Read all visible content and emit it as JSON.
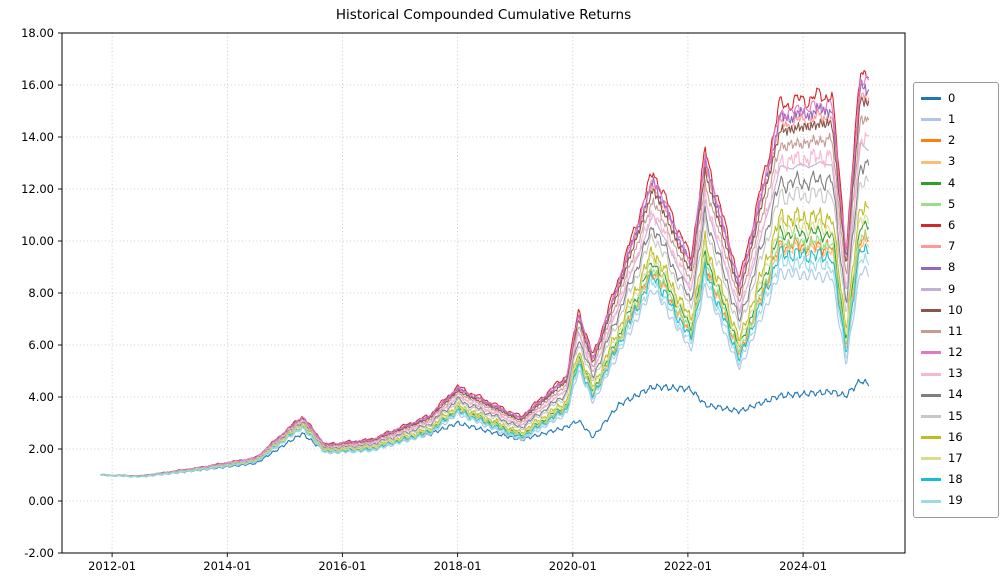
{
  "figure": {
    "background": "#ffffff"
  },
  "chart_data": {
    "type": "line",
    "title": "Historical Compounded Cumulative Returns",
    "xlabel": "",
    "ylabel": "",
    "grid": "dotted",
    "grid_color": "#b0b0b0",
    "spine_color": "#000000",
    "legend_position": "right-outside",
    "xlim": [
      2011.13,
      2025.77
    ],
    "ylim": [
      -2,
      18
    ],
    "x_tick_years": [
      2012,
      2014,
      2016,
      2018,
      2020,
      2022,
      2024
    ],
    "x_tick_labels": [
      "2012-01",
      "2014-01",
      "2016-01",
      "2018-01",
      "2020-01",
      "2022-01",
      "2024-01"
    ],
    "y_ticks": [
      -2,
      0,
      2,
      4,
      6,
      8,
      10,
      12,
      14,
      16,
      18
    ],
    "y_tick_labels": [
      "-2.00",
      "0.00",
      "2.00",
      "4.00",
      "6.00",
      "8.00",
      "10.00",
      "12.00",
      "14.00",
      "16.00",
      "18.00"
    ],
    "x_anchor_years": [
      2011.8,
      2012.5,
      2013.5,
      2014.5,
      2015.3,
      2015.7,
      2016.5,
      2017.5,
      2018.0,
      2019.1,
      2019.9,
      2020.1,
      2020.35,
      2020.8,
      2021.4,
      2022.05,
      2022.3,
      2022.9,
      2023.6,
      2024.5,
      2024.75,
      2025.0,
      2025.15
    ],
    "series": [
      {
        "name": "0",
        "color": "#1f77b4",
        "values": [
          1.0,
          0.93,
          1.18,
          1.45,
          2.6,
          1.9,
          2.05,
          2.55,
          3.0,
          2.35,
          2.85,
          3.1,
          2.45,
          3.7,
          4.4,
          4.3,
          3.7,
          3.45,
          4.05,
          4.2,
          4.05,
          4.65,
          4.45
        ]
      },
      {
        "name": "1",
        "color": "#aec7e8",
        "values": [
          1.0,
          0.93,
          1.19,
          1.49,
          2.81,
          1.84,
          1.93,
          2.55,
          3.34,
          2.34,
          3.37,
          5.06,
          3.79,
          5.71,
          8.19,
          5.82,
          8.29,
          5.08,
          8.78,
          8.61,
          5.25,
          8.96,
          8.71
        ]
      },
      {
        "name": "2",
        "color": "#ff7f0e",
        "values": [
          1.0,
          0.94,
          1.21,
          1.52,
          2.89,
          1.89,
          2.0,
          2.67,
          3.52,
          2.49,
          3.62,
          5.45,
          4.08,
          6.19,
          8.94,
          6.4,
          9.15,
          5.64,
          9.86,
          9.79,
          5.98,
          10.25,
          9.99
        ]
      },
      {
        "name": "3",
        "color": "#ffbb78",
        "values": [
          1.0,
          0.94,
          1.21,
          1.51,
          2.88,
          1.89,
          1.99,
          2.65,
          3.49,
          2.47,
          3.58,
          5.39,
          4.04,
          6.11,
          8.83,
          6.32,
          9.02,
          5.56,
          9.7,
          9.61,
          5.87,
          10.06,
          9.8
        ]
      },
      {
        "name": "4",
        "color": "#2ca02c",
        "values": [
          1.0,
          0.94,
          1.22,
          1.53,
          2.92,
          1.92,
          2.03,
          2.72,
          3.59,
          2.55,
          3.73,
          5.61,
          4.21,
          6.39,
          9.26,
          6.65,
          9.51,
          5.88,
          10.31,
          10.28,
          6.29,
          10.8,
          10.53
        ]
      },
      {
        "name": "5",
        "color": "#98df8a",
        "values": [
          1.0,
          0.94,
          1.21,
          1.52,
          2.9,
          1.9,
          2.01,
          2.68,
          3.54,
          2.5,
          3.65,
          5.49,
          4.12,
          6.24,
          9.02,
          6.46,
          9.24,
          5.7,
          9.97,
          9.91,
          6.06,
          10.39,
          10.13
        ]
      },
      {
        "name": "6",
        "color": "#d62728",
        "values": [
          1.0,
          0.96,
          1.28,
          1.67,
          3.27,
          2.18,
          2.37,
          3.28,
          4.4,
          3.24,
          4.86,
          7.37,
          5.57,
          8.59,
          12.7,
          9.32,
          13.45,
          8.49,
          15.23,
          15.66,
          9.67,
          16.73,
          16.4
        ]
      },
      {
        "name": "7",
        "color": "#ff9896",
        "values": [
          1.0,
          0.96,
          1.27,
          1.65,
          3.22,
          2.14,
          2.31,
          3.19,
          4.27,
          3.13,
          4.69,
          7.1,
          5.36,
          8.25,
          12.17,
          8.91,
          12.84,
          8.09,
          14.47,
          14.83,
          9.15,
          15.82,
          15.5
        ]
      },
      {
        "name": "8",
        "color": "#9467bd",
        "values": [
          1.0,
          0.96,
          1.28,
          1.65,
          3.24,
          2.15,
          2.33,
          3.22,
          4.32,
          3.17,
          4.74,
          7.19,
          5.43,
          8.36,
          12.34,
          9.04,
          13.04,
          8.22,
          14.72,
          15.1,
          9.32,
          16.12,
          15.8
        ]
      },
      {
        "name": "9",
        "color": "#c5b0d5",
        "values": [
          1.0,
          0.95,
          1.25,
          1.6,
          3.1,
          2.05,
          2.2,
          3.0,
          4.0,
          2.9,
          4.3,
          6.5,
          4.9,
          7.5,
          11.0,
          8.0,
          11.5,
          7.2,
          12.8,
          13.0,
          8.0,
          13.8,
          13.5
        ]
      },
      {
        "name": "10",
        "color": "#8c564b",
        "values": [
          1.0,
          0.96,
          1.27,
          1.64,
          3.2,
          2.13,
          2.3,
          3.16,
          4.23,
          3.1,
          4.63,
          7.01,
          5.3,
          8.14,
          12.0,
          8.77,
          12.64,
          7.95,
          14.23,
          14.56,
          8.98,
          15.52,
          15.2
        ]
      },
      {
        "name": "11",
        "color": "#c49c94",
        "values": [
          1.0,
          0.95,
          1.26,
          1.62,
          3.16,
          2.09,
          2.26,
          3.09,
          4.14,
          3.02,
          4.49,
          6.8,
          5.13,
          7.87,
          11.59,
          8.45,
          12.17,
          7.64,
          13.64,
          13.92,
          8.57,
          14.81,
          14.5
        ]
      },
      {
        "name": "12",
        "color": "#e377c2",
        "values": [
          1.0,
          0.96,
          1.28,
          1.66,
          3.25,
          2.16,
          2.34,
          3.24,
          4.34,
          3.19,
          4.78,
          7.25,
          5.48,
          8.44,
          12.46,
          9.14,
          13.17,
          8.31,
          14.89,
          15.29,
          9.44,
          16.33,
          16.0
        ]
      },
      {
        "name": "13",
        "color": "#f7b6d2",
        "values": [
          1.0,
          0.95,
          1.25,
          1.61,
          3.12,
          2.06,
          2.22,
          3.03,
          4.04,
          2.93,
          4.36,
          6.59,
          4.97,
          7.61,
          11.17,
          8.14,
          11.7,
          7.33,
          13.05,
          13.27,
          8.17,
          14.1,
          13.8
        ]
      },
      {
        "name": "14",
        "color": "#7f7f7f",
        "values": [
          1.0,
          0.95,
          1.24,
          1.58,
          3.06,
          2.02,
          2.16,
          2.93,
          3.9,
          2.82,
          4.16,
          6.29,
          4.74,
          7.24,
          10.59,
          7.68,
          11.03,
          6.89,
          12.21,
          12.36,
          7.6,
          13.09,
          12.8
        ]
      },
      {
        "name": "15",
        "color": "#c7c7c7",
        "values": [
          1.0,
          0.95,
          1.23,
          1.57,
          3.02,
          1.99,
          2.13,
          2.88,
          3.82,
          2.75,
          4.05,
          6.11,
          4.6,
          7.01,
          10.24,
          7.41,
          10.63,
          6.63,
          11.71,
          11.81,
          7.26,
          12.49,
          12.2
        ]
      },
      {
        "name": "16",
        "color": "#bcbd22",
        "values": [
          1.0,
          0.94,
          1.22,
          1.55,
          2.96,
          1.95,
          2.07,
          2.78,
          3.68,
          2.63,
          3.86,
          5.81,
          4.37,
          6.64,
          9.66,
          6.96,
          9.96,
          6.18,
          10.88,
          10.9,
          6.68,
          11.48,
          11.2
        ]
      },
      {
        "name": "17",
        "color": "#dbdb8d",
        "values": [
          1.0,
          0.94,
          1.22,
          1.54,
          2.94,
          1.93,
          2.05,
          2.74,
          3.63,
          2.58,
          3.78,
          5.69,
          4.27,
          6.49,
          9.42,
          6.77,
          9.69,
          6.0,
          10.54,
          10.53,
          6.45,
          11.07,
          10.8
        ]
      },
      {
        "name": "18",
        "color": "#17becf",
        "values": [
          1.0,
          0.94,
          1.2,
          1.51,
          2.86,
          1.88,
          1.98,
          2.63,
          3.46,
          2.44,
          3.54,
          5.33,
          3.99,
          6.03,
          8.71,
          6.22,
          8.88,
          5.46,
          9.52,
          9.41,
          5.75,
          9.84,
          9.6
        ]
      },
      {
        "name": "19",
        "color": "#9edae5",
        "values": [
          1.0,
          0.93,
          1.2,
          1.5,
          2.84,
          1.86,
          1.95,
          2.59,
          3.41,
          2.39,
          3.46,
          5.21,
          3.9,
          5.88,
          8.47,
          6.03,
          8.6,
          5.29,
          9.18,
          9.04,
          5.52,
          9.43,
          9.2
        ]
      }
    ]
  }
}
